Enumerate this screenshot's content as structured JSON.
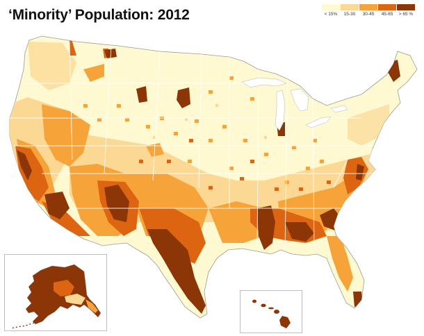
{
  "title": "‘Minority’ Population: 2012",
  "legend": {
    "items": [
      {
        "label": "< 15%",
        "color": "#fef9d0"
      },
      {
        "label": "15-30",
        "color": "#fbd894"
      },
      {
        "label": "30-45",
        "color": "#f6a43a"
      },
      {
        "label": "45-65",
        "color": "#dd6512"
      },
      {
        "label": "> 65 %",
        "color": "#8c3607"
      }
    ]
  },
  "colors": {
    "background": "#ffffff",
    "state_border": "#ffffff",
    "coast": "#9a9a9a",
    "lake": "#ffffff"
  },
  "regions": {
    "contiguous_us": "Contiguous United States",
    "alaska": "Alaska",
    "hawaii": "Hawaii"
  }
}
